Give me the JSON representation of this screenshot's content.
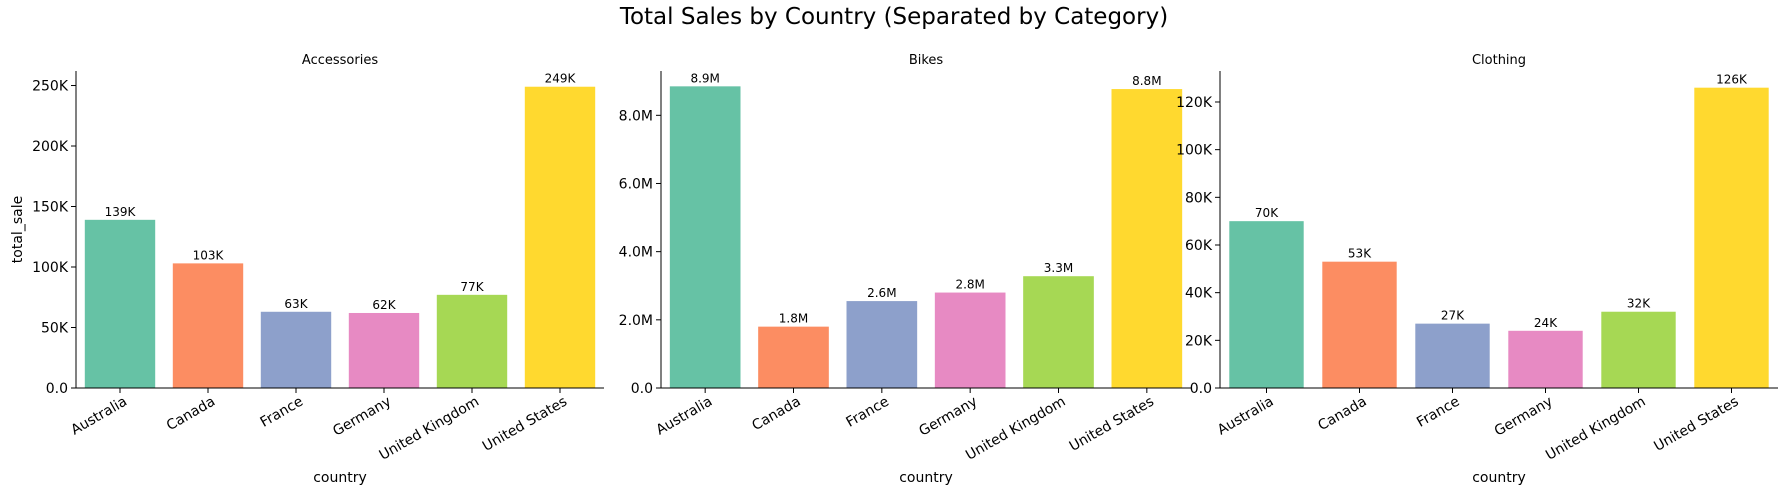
{
  "figure": {
    "suptitle": "Total Sales by Country (Separated by Category)"
  },
  "chart_data": [
    {
      "type": "bar",
      "title": "Accessories",
      "xlabel": "country",
      "ylabel": "total_sale",
      "categories": [
        "Australia",
        "Canada",
        "France",
        "Germany",
        "United Kingdom",
        "United States"
      ],
      "values": [
        139000,
        103000,
        63000,
        62000,
        77000,
        249000
      ],
      "data_labels": [
        "139K",
        "103K",
        "63K",
        "62K",
        "77K",
        "249K"
      ],
      "yticks": [
        0,
        50000,
        100000,
        150000,
        200000,
        250000
      ],
      "ytick_labels": [
        "0.0",
        "50K",
        "100K",
        "150K",
        "200K",
        "250K"
      ],
      "ylim": [
        0,
        262000
      ],
      "colors": [
        "#66c2a5",
        "#fc8d62",
        "#8da0cb",
        "#e78ac3",
        "#a6d854",
        "#ffd92f"
      ],
      "grid": false
    },
    {
      "type": "bar",
      "title": "Bikes",
      "xlabel": "country",
      "ylabel": "",
      "categories": [
        "Australia",
        "Canada",
        "France",
        "Germany",
        "United Kingdom",
        "United States"
      ],
      "values": [
        8850000,
        1800000,
        2550000,
        2800000,
        3280000,
        8770000
      ],
      "data_labels": [
        "8.9M",
        "1.8M",
        "2.6M",
        "2.8M",
        "3.3M",
        "8.8M"
      ],
      "yticks": [
        0,
        2000000,
        4000000,
        6000000,
        8000000
      ],
      "ytick_labels": [
        "0.0",
        "2.0M",
        "4.0M",
        "6.0M",
        "8.0M"
      ],
      "ylim": [
        0,
        9300000
      ],
      "colors": [
        "#66c2a5",
        "#fc8d62",
        "#8da0cb",
        "#e78ac3",
        "#a6d854",
        "#ffd92f"
      ],
      "grid": false
    },
    {
      "type": "bar",
      "title": "Clothing",
      "xlabel": "country",
      "ylabel": "",
      "categories": [
        "Australia",
        "Canada",
        "France",
        "Germany",
        "United Kingdom",
        "United States"
      ],
      "values": [
        70000,
        53000,
        27000,
        24000,
        32000,
        126000
      ],
      "data_labels": [
        "70K",
        "53K",
        "27K",
        "24K",
        "32K",
        "126K"
      ],
      "yticks": [
        0,
        20000,
        40000,
        60000,
        80000,
        100000,
        120000
      ],
      "ytick_labels": [
        "0.0",
        "20K",
        "40K",
        "60K",
        "80K",
        "100K",
        "120K"
      ],
      "ylim": [
        0,
        133000
      ],
      "colors": [
        "#66c2a5",
        "#fc8d62",
        "#8da0cb",
        "#e78ac3",
        "#a6d854",
        "#ffd92f"
      ],
      "grid": false
    }
  ]
}
